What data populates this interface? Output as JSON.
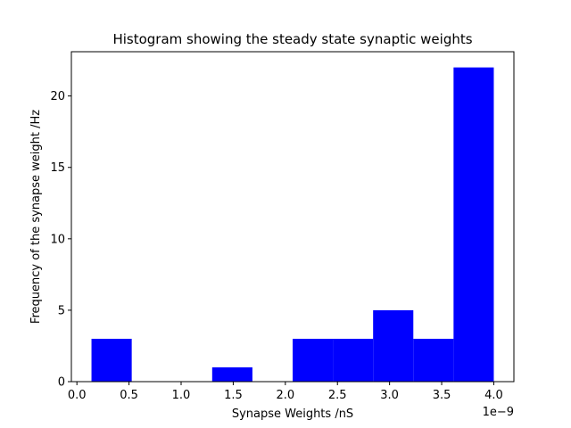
{
  "chart_data": {
    "type": "bar",
    "title": "Histogram showing the steady state synaptic weights",
    "xlabel": "Synapse Weights /nS",
    "ylabel": "Frequency of the synapse weight /Hz",
    "x_offset_label": "1e−9",
    "bar_color": "#0000ff",
    "bins": [
      {
        "start": 0.14,
        "end": 0.526,
        "count": 3
      },
      {
        "start": 0.526,
        "end": 0.912,
        "count": 0
      },
      {
        "start": 0.912,
        "end": 1.298,
        "count": 0
      },
      {
        "start": 1.298,
        "end": 1.684,
        "count": 1
      },
      {
        "start": 1.684,
        "end": 2.07,
        "count": 0
      },
      {
        "start": 2.07,
        "end": 2.456,
        "count": 3
      },
      {
        "start": 2.456,
        "end": 2.842,
        "count": 3
      },
      {
        "start": 2.842,
        "end": 3.228,
        "count": 5
      },
      {
        "start": 3.228,
        "end": 3.614,
        "count": 3
      },
      {
        "start": 3.614,
        "end": 4.0,
        "count": 22
      }
    ],
    "xlim": [
      -0.053,
      4.193
    ],
    "ylim": [
      0,
      23.1
    ],
    "xticks": [
      {
        "value": 0.0,
        "label": "0.0"
      },
      {
        "value": 0.5,
        "label": "0.5"
      },
      {
        "value": 1.0,
        "label": "1.0"
      },
      {
        "value": 1.5,
        "label": "1.5"
      },
      {
        "value": 2.0,
        "label": "2.0"
      },
      {
        "value": 2.5,
        "label": "2.5"
      },
      {
        "value": 3.0,
        "label": "3.0"
      },
      {
        "value": 3.5,
        "label": "3.5"
      },
      {
        "value": 4.0,
        "label": "4.0"
      }
    ],
    "yticks": [
      {
        "value": 0,
        "label": "0"
      },
      {
        "value": 5,
        "label": "5"
      },
      {
        "value": 10,
        "label": "10"
      },
      {
        "value": 15,
        "label": "15"
      },
      {
        "value": 20,
        "label": "20"
      }
    ],
    "grid": false,
    "legend": "none"
  }
}
